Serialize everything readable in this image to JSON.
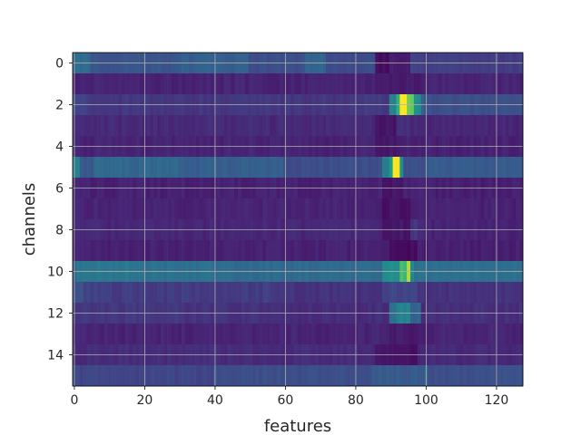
{
  "chart_data": {
    "type": "heatmap",
    "title": "",
    "xlabel": "features",
    "ylabel": "channels",
    "x_count": 128,
    "y_count": 16,
    "xlim": [
      -0.5,
      127.5
    ],
    "ylim": [
      15.5,
      -0.5
    ],
    "x_ticks": [
      "0",
      "20",
      "40",
      "60",
      "80",
      "100",
      "120"
    ],
    "y_ticks": [
      "0",
      "2",
      "4",
      "6",
      "8",
      "10",
      "12",
      "14"
    ],
    "grid": true,
    "colormap": "viridis",
    "value_range": [
      0,
      1
    ],
    "row_profiles": [
      {
        "row": 0,
        "base": 0.3,
        "segments": [
          [
            0,
            5,
            0.45
          ],
          [
            5,
            30,
            0.33
          ],
          [
            30,
            50,
            0.38
          ],
          [
            50,
            66,
            0.3
          ],
          [
            66,
            72,
            0.4
          ],
          [
            72,
            86,
            0.28
          ],
          [
            86,
            90,
            0.05
          ],
          [
            90,
            92,
            0.12
          ],
          [
            92,
            96,
            0.08
          ],
          [
            96,
            99,
            0.25
          ],
          [
            99,
            128,
            0.22
          ]
        ]
      },
      {
        "row": 1,
        "base": 0.12,
        "segments": [
          [
            0,
            86,
            0.13
          ],
          [
            86,
            100,
            0.1
          ],
          [
            100,
            128,
            0.13
          ]
        ]
      },
      {
        "row": 2,
        "base": 0.22,
        "segments": [
          [
            0,
            5,
            0.24
          ],
          [
            5,
            90,
            0.2
          ],
          [
            90,
            92,
            0.55
          ],
          [
            92,
            93,
            0.75
          ],
          [
            93,
            95,
            1.0
          ],
          [
            95,
            97,
            0.85
          ],
          [
            97,
            99,
            0.62
          ],
          [
            99,
            100,
            0.4
          ],
          [
            100,
            128,
            0.3
          ]
        ]
      },
      {
        "row": 3,
        "base": 0.15,
        "segments": [
          [
            0,
            86,
            0.15
          ],
          [
            86,
            92,
            0.08
          ],
          [
            92,
            96,
            0.18
          ],
          [
            96,
            128,
            0.14
          ]
        ]
      },
      {
        "row": 4,
        "base": 0.13,
        "segments": [
          [
            0,
            86,
            0.13
          ],
          [
            86,
            93,
            0.09
          ],
          [
            93,
            128,
            0.12
          ]
        ]
      },
      {
        "row": 5,
        "base": 0.38,
        "segments": [
          [
            0,
            2,
            0.55
          ],
          [
            2,
            6,
            0.35
          ],
          [
            6,
            30,
            0.42
          ],
          [
            30,
            60,
            0.38
          ],
          [
            60,
            88,
            0.3
          ],
          [
            88,
            90,
            0.5
          ],
          [
            90,
            91,
            0.7
          ],
          [
            91,
            93,
            1.0
          ],
          [
            93,
            94,
            0.6
          ],
          [
            94,
            100,
            0.3
          ],
          [
            100,
            128,
            0.36
          ]
        ]
      },
      {
        "row": 6,
        "base": 0.12,
        "segments": [
          [
            0,
            88,
            0.12
          ],
          [
            88,
            94,
            0.08
          ],
          [
            94,
            128,
            0.11
          ]
        ]
      },
      {
        "row": 7,
        "base": 0.13,
        "segments": [
          [
            0,
            88,
            0.13
          ],
          [
            88,
            96,
            0.06
          ],
          [
            96,
            128,
            0.12
          ]
        ]
      },
      {
        "row": 8,
        "base": 0.14,
        "segments": [
          [
            0,
            88,
            0.14
          ],
          [
            88,
            96,
            0.08
          ],
          [
            96,
            98,
            0.2
          ],
          [
            98,
            128,
            0.13
          ]
        ]
      },
      {
        "row": 9,
        "base": 0.12,
        "segments": [
          [
            0,
            90,
            0.12
          ],
          [
            90,
            98,
            0.04
          ],
          [
            98,
            128,
            0.11
          ]
        ]
      },
      {
        "row": 10,
        "base": 0.48,
        "segments": [
          [
            0,
            1,
            0.4
          ],
          [
            1,
            20,
            0.5
          ],
          [
            20,
            40,
            0.46
          ],
          [
            40,
            88,
            0.44
          ],
          [
            88,
            93,
            0.62
          ],
          [
            93,
            95,
            0.8
          ],
          [
            95,
            96,
            0.95
          ],
          [
            96,
            97,
            0.6
          ],
          [
            97,
            128,
            0.46
          ]
        ]
      },
      {
        "row": 11,
        "base": 0.22,
        "segments": [
          [
            0,
            3,
            0.3
          ],
          [
            3,
            10,
            0.24
          ],
          [
            10,
            58,
            0.22
          ],
          [
            58,
            88,
            0.18
          ],
          [
            88,
            98,
            0.26
          ],
          [
            98,
            128,
            0.18
          ]
        ]
      },
      {
        "row": 12,
        "base": 0.18,
        "segments": [
          [
            0,
            30,
            0.2
          ],
          [
            30,
            60,
            0.18
          ],
          [
            60,
            90,
            0.16
          ],
          [
            90,
            92,
            0.45
          ],
          [
            92,
            96,
            0.55
          ],
          [
            96,
            99,
            0.4
          ],
          [
            99,
            128,
            0.17
          ]
        ]
      },
      {
        "row": 13,
        "base": 0.13,
        "segments": [
          [
            0,
            90,
            0.13
          ],
          [
            90,
            99,
            0.1
          ],
          [
            99,
            128,
            0.13
          ]
        ]
      },
      {
        "row": 14,
        "base": 0.16,
        "segments": [
          [
            0,
            86,
            0.16
          ],
          [
            86,
            98,
            0.06
          ],
          [
            98,
            128,
            0.15
          ]
        ]
      },
      {
        "row": 15,
        "base": 0.28,
        "segments": [
          [
            0,
            40,
            0.26
          ],
          [
            40,
            85,
            0.3
          ],
          [
            85,
            100,
            0.36
          ],
          [
            100,
            101,
            0.45
          ],
          [
            101,
            128,
            0.3
          ]
        ]
      }
    ]
  }
}
